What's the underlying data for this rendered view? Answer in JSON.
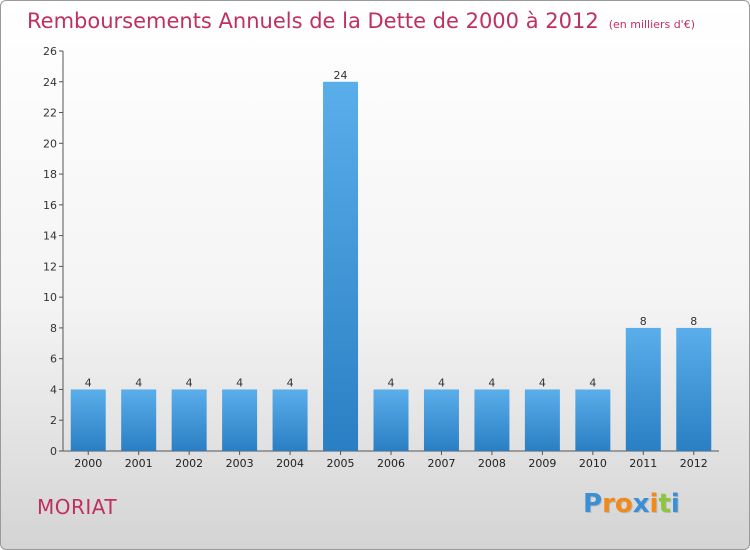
{
  "chart_data": {
    "type": "bar",
    "title": "Remboursements Annuels de la Dette de 2000 à 2012",
    "subtitle": "(en milliers d'€)",
    "categories": [
      "2000",
      "2001",
      "2002",
      "2003",
      "2004",
      "2005",
      "2006",
      "2007",
      "2008",
      "2009",
      "2010",
      "2011",
      "2012"
    ],
    "values": [
      4,
      4,
      4,
      4,
      4,
      24,
      4,
      4,
      4,
      4,
      4,
      8,
      8
    ],
    "ylim": [
      0,
      26
    ],
    "yticks": [
      0,
      2,
      4,
      6,
      8,
      10,
      12,
      14,
      16,
      18,
      20,
      22,
      24,
      26
    ],
    "grid": false,
    "legend": "none",
    "bar_color_light": "#5aaeea",
    "bar_color_dark": "#2a7fc4"
  },
  "commune": "MORIAT",
  "logo": {
    "letters": [
      "P",
      "r",
      "o",
      "x",
      "i",
      "t",
      "i"
    ],
    "colors": [
      "#3a8fd6",
      "#f08a1c",
      "#f08a1c",
      "#3a8fd6",
      "#f08a1c",
      "#8cc63f",
      "#3a8fd6"
    ]
  }
}
